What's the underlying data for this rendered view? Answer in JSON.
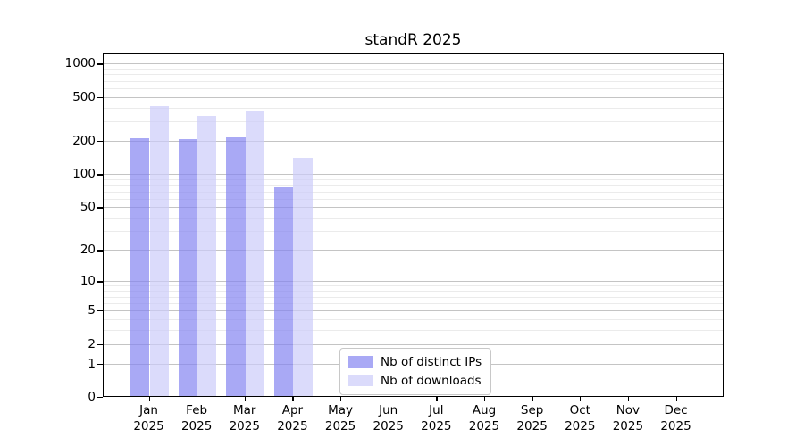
{
  "title": "standR 2025",
  "chart_data": {
    "type": "bar",
    "title": "standR 2025",
    "categories": [
      "Jan",
      "Feb",
      "Mar",
      "Apr",
      "May",
      "Jun",
      "Jul",
      "Aug",
      "Sep",
      "Oct",
      "Nov",
      "Dec"
    ],
    "year_label": "2025",
    "series": [
      {
        "name": "Nb of distinct IPs",
        "color": "rgba(132,132,241,0.70)",
        "values": [
          210,
          204,
          213,
          75,
          null,
          null,
          null,
          null,
          null,
          null,
          null,
          null
        ]
      },
      {
        "name": "Nb of downloads",
        "color": "rgba(204,204,250,0.70)",
        "values": [
          410,
          334,
          373,
          138,
          null,
          null,
          null,
          null,
          null,
          null,
          null,
          null
        ]
      }
    ],
    "y_axis": {
      "scale": "log1p",
      "ticks": [
        0,
        1,
        2,
        5,
        10,
        20,
        50,
        100,
        200,
        500,
        1000
      ],
      "minor_gridlines": [
        3,
        4,
        6,
        7,
        8,
        9,
        30,
        40,
        60,
        70,
        80,
        90,
        300,
        400,
        600,
        700,
        800,
        900
      ],
      "top_value": 1259
    },
    "legend_position": "bottom-center-inside",
    "grid": true
  },
  "colors": {
    "distinct_ips_bar": "rgba(132,132,241,0.70)",
    "downloads_bar": "rgba(204,204,250,0.70)",
    "major_gridline": "#c4c4c4",
    "minor_gridline": "#ebebeb",
    "axis_spine": "#000000",
    "legend_border": "#c8c8c8"
  }
}
